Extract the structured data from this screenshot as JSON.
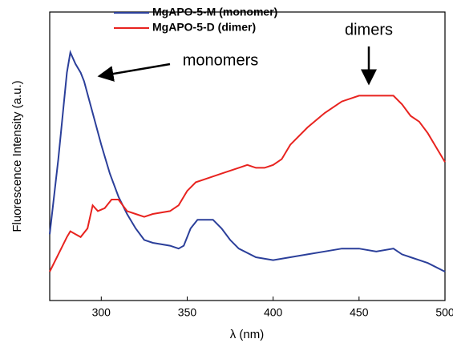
{
  "chart_data": {
    "type": "line",
    "xlabel": "λ (nm)",
    "ylabel": "Fluorescence Intensity (a.u.)",
    "xlim": [
      270,
      500
    ],
    "xticks": [
      300,
      350,
      400,
      450,
      500
    ],
    "ylim": [
      0,
      1
    ],
    "legend": "top",
    "annotations": [
      "monomers",
      "dimers"
    ],
    "series": [
      {
        "name": "MgAPO-5-M (monomer)",
        "color": "#2b3f9a",
        "x": [
          270,
          275,
          280,
          282,
          285,
          288,
          290,
          295,
          300,
          305,
          310,
          315,
          320,
          325,
          330,
          340,
          345,
          348,
          352,
          356,
          360,
          365,
          370,
          375,
          380,
          390,
          400,
          410,
          420,
          430,
          440,
          450,
          460,
          470,
          475,
          480,
          485,
          490,
          500
        ],
        "values": [
          0.23,
          0.49,
          0.79,
          0.86,
          0.82,
          0.79,
          0.76,
          0.65,
          0.54,
          0.44,
          0.36,
          0.3,
          0.25,
          0.21,
          0.2,
          0.19,
          0.18,
          0.19,
          0.25,
          0.28,
          0.28,
          0.28,
          0.25,
          0.21,
          0.18,
          0.15,
          0.14,
          0.15,
          0.16,
          0.17,
          0.18,
          0.18,
          0.17,
          0.18,
          0.16,
          0.15,
          0.14,
          0.13,
          0.1
        ]
      },
      {
        "name": "MgAPO-5-D (dimer)",
        "color": "#e8231f",
        "x": [
          270,
          275,
          280,
          282,
          285,
          288,
          292,
          295,
          298,
          302,
          306,
          310,
          315,
          320,
          325,
          330,
          340,
          345,
          350,
          355,
          360,
          370,
          380,
          385,
          390,
          395,
          400,
          405,
          410,
          420,
          430,
          440,
          450,
          455,
          460,
          465,
          470,
          475,
          480,
          485,
          490,
          495,
          500
        ],
        "values": [
          0.1,
          0.16,
          0.22,
          0.24,
          0.23,
          0.22,
          0.25,
          0.33,
          0.31,
          0.32,
          0.35,
          0.35,
          0.31,
          0.3,
          0.29,
          0.3,
          0.31,
          0.33,
          0.38,
          0.41,
          0.42,
          0.44,
          0.46,
          0.47,
          0.46,
          0.46,
          0.47,
          0.49,
          0.54,
          0.6,
          0.65,
          0.69,
          0.71,
          0.71,
          0.71,
          0.71,
          0.71,
          0.68,
          0.64,
          0.62,
          0.58,
          0.53,
          0.48
        ]
      }
    ]
  }
}
